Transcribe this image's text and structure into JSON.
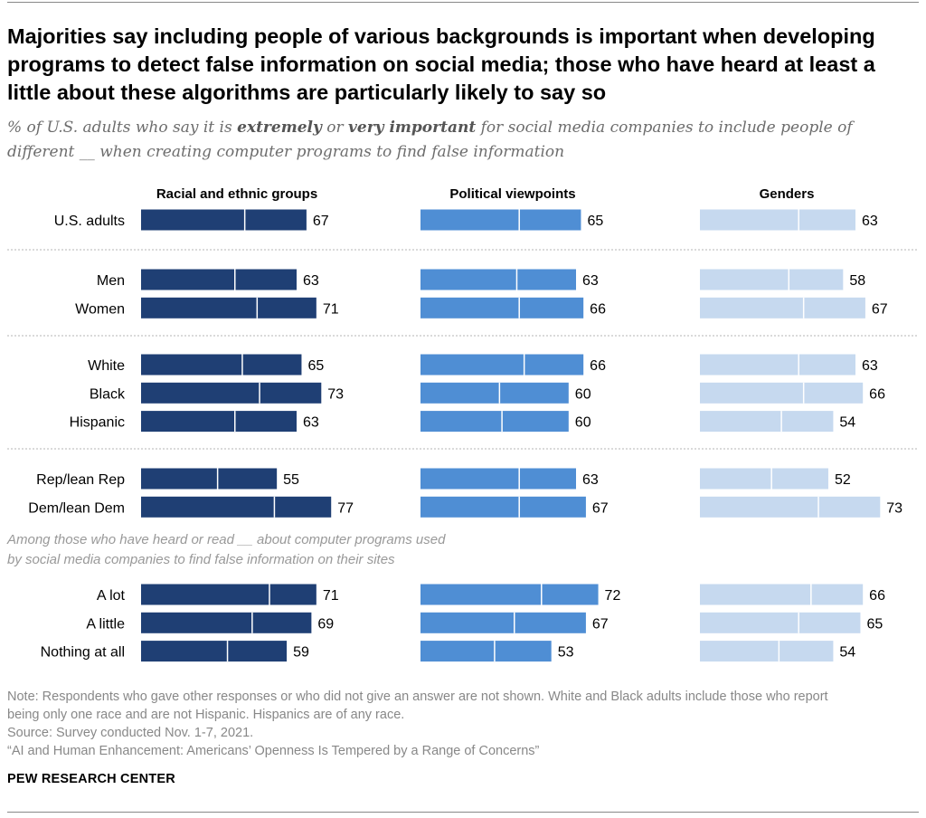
{
  "title": "Majorities say including people of various backgrounds is important when developing programs to detect false information on social media; those who have heard at least a little about these algorithms are particularly likely to say so",
  "subtitle": {
    "part1": "% of U.S. adults who say it is ",
    "em1": "extremely",
    "part2": " or ",
    "em2": "very important",
    "part3": " for social media companies to include people of different __ when creating computer programs to find false information"
  },
  "chart_data": {
    "type": "bar",
    "orientation": "horizontal",
    "stacked_segments": "each bar is split into 'extremely' and 'very' segments; only the NET total is labeled",
    "series": [
      {
        "name": "Racial and ethnic groups",
        "color": "#1f3f74"
      },
      {
        "name": "Political viewpoints",
        "color": "#4f8ed4"
      },
      {
        "name": "Genders",
        "color": "#c6d9ef"
      }
    ],
    "groups": [
      {
        "rows": [
          {
            "label": "U.S. adults",
            "values": [
              67,
              65,
              63
            ],
            "split": [
              42,
              40,
              40
            ]
          }
        ]
      },
      {
        "rows": [
          {
            "label": "Men",
            "values": [
              63,
              63,
              58
            ],
            "split": [
              38,
              39,
              36
            ]
          },
          {
            "label": "Women",
            "values": [
              71,
              66,
              67
            ],
            "split": [
              47,
              40,
              42
            ]
          }
        ]
      },
      {
        "rows": [
          {
            "label": "White",
            "values": [
              65,
              66,
              63
            ],
            "split": [
              41,
              42,
              40
            ]
          },
          {
            "label": "Black",
            "values": [
              73,
              60,
              66
            ],
            "split": [
              48,
              32,
              42
            ]
          },
          {
            "label": "Hispanic",
            "values": [
              63,
              60,
              54
            ],
            "split": [
              38,
              33,
              33
            ]
          }
        ]
      },
      {
        "rows": [
          {
            "label": "Rep/lean Rep",
            "values": [
              55,
              63,
              52
            ],
            "split": [
              31,
              40,
              29
            ]
          },
          {
            "label": "Dem/lean Dem",
            "values": [
              77,
              67,
              73
            ],
            "split": [
              54,
              40,
              48
            ]
          }
        ]
      },
      {
        "subheading_lines": [
          "Among those who have heard or read __ about computer programs used",
          "by social media companies to find false information on their sites"
        ],
        "rows": [
          {
            "label": "A lot",
            "values": [
              71,
              72,
              66
            ],
            "split": [
              52,
              49,
              45
            ]
          },
          {
            "label": "A little",
            "values": [
              69,
              67,
              65
            ],
            "split": [
              45,
              38,
              40
            ]
          },
          {
            "label": "Nothing at all",
            "values": [
              59,
              53,
              54
            ],
            "split": [
              35,
              30,
              32
            ]
          }
        ]
      }
    ]
  },
  "notes": {
    "note_line1": "Note: Respondents who gave other responses or who did not give an answer are not shown. White and Black adults include those who report",
    "note_line2": "being only one race and are not Hispanic. Hispanics are of any race.",
    "source": "Source: Survey conducted Nov. 1-7, 2021.",
    "report": "“AI and Human Enhancement: Americans’ Openness Is Tempered by a Range of Concerns”"
  },
  "brand": "PEW RESEARCH CENTER"
}
